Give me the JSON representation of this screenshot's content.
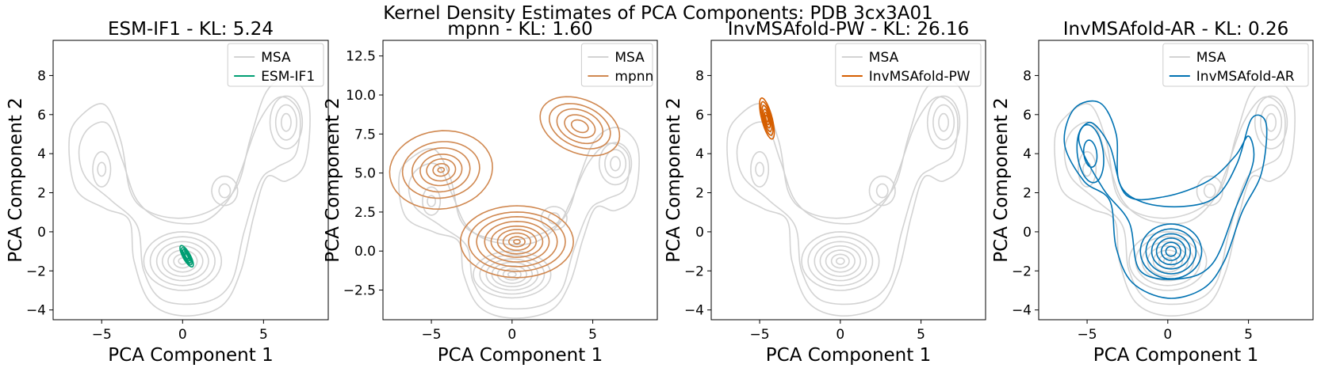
{
  "figure": {
    "suptitle": "Kernel Density Estimates of PCA Components: PDB 3cx3A01"
  },
  "chart_data": [
    {
      "type": "kde_contour",
      "title": "ESM-IF1 - KL: 5.24",
      "xlabel": "PCA Component 1",
      "ylabel": "PCA Component 2",
      "xlim": [
        -8,
        9
      ],
      "ylim": [
        -4.5,
        9.8
      ],
      "xticks": [
        -5,
        0,
        5
      ],
      "yticks": [
        -4,
        -2,
        0,
        2,
        4,
        6,
        8
      ],
      "legend": {
        "position": "top-right",
        "entries": [
          "MSA",
          "ESM-IF1"
        ]
      },
      "series": [
        {
          "name": "MSA",
          "color": "#d3d3d3",
          "role": "reference",
          "peaks": [
            [
              0,
              -1.5
            ],
            [
              -5,
              3.2
            ],
            [
              6.4,
              5.6
            ],
            [
              2.6,
              2.1
            ]
          ]
        },
        {
          "name": "ESM-IF1",
          "color": "#009e73",
          "peaks": [
            [
              0.2,
              -1.2
            ]
          ]
        }
      ]
    },
    {
      "type": "kde_contour",
      "title": "mpnn - KL: 1.60",
      "xlabel": "PCA Component 1",
      "ylabel": "PCA Component 2",
      "xlim": [
        -8,
        9
      ],
      "ylim": [
        -4.4,
        13.5
      ],
      "xticks": [
        -5,
        0,
        5
      ],
      "yticks": [
        -2.5,
        0.0,
        2.5,
        5.0,
        7.5,
        10.0,
        12.5
      ],
      "ytick_labels": [
        "−2.5",
        "0.0",
        "2.5",
        "5.0",
        "7.5",
        "10.0",
        "12.5"
      ],
      "legend": {
        "position": "top-right",
        "entries": [
          "MSA",
          "mpnn"
        ]
      },
      "series": [
        {
          "name": "MSA",
          "color": "#d3d3d3",
          "role": "reference",
          "peaks": [
            [
              0,
              -1.5
            ],
            [
              -5,
              3.2
            ],
            [
              6.4,
              5.6
            ],
            [
              2.6,
              2.1
            ]
          ]
        },
        {
          "name": "mpnn",
          "color": "#d08850",
          "peaks": [
            [
              0.3,
              0.5
            ],
            [
              -4.6,
              5.3
            ],
            [
              4.2,
              8.1
            ]
          ]
        }
      ]
    },
    {
      "type": "kde_contour",
      "title": "InvMSAfold-PW - KL: 26.16",
      "xlabel": "PCA Component 1",
      "ylabel": "PCA Component 2",
      "xlim": [
        -8,
        9
      ],
      "ylim": [
        -4.5,
        9.8
      ],
      "xticks": [
        -5,
        0,
        5
      ],
      "yticks": [
        -4,
        -2,
        0,
        2,
        4,
        6,
        8
      ],
      "legend": {
        "position": "top-right",
        "entries": [
          "MSA",
          "InvMSAfold-PW"
        ]
      },
      "series": [
        {
          "name": "MSA",
          "color": "#d3d3d3",
          "role": "reference",
          "peaks": [
            [
              0,
              -1.5
            ],
            [
              -5,
              3.2
            ],
            [
              6.4,
              5.6
            ],
            [
              2.6,
              2.1
            ]
          ]
        },
        {
          "name": "InvMSAfold-PW",
          "color": "#d55e00",
          "peaks": [
            [
              -4.6,
              5.8
            ]
          ]
        }
      ]
    },
    {
      "type": "kde_contour",
      "title": "InvMSAfold-AR - KL: 0.26",
      "xlabel": "PCA Component 1",
      "ylabel": "PCA Component 2",
      "xlim": [
        -8,
        9
      ],
      "ylim": [
        -4.5,
        9.8
      ],
      "xticks": [
        -5,
        0,
        5
      ],
      "yticks": [
        -4,
        -2,
        0,
        2,
        4,
        6,
        8
      ],
      "legend": {
        "position": "top-right",
        "entries": [
          "MSA",
          "InvMSAfold-AR"
        ]
      },
      "series": [
        {
          "name": "MSA",
          "color": "#d3d3d3",
          "role": "reference",
          "peaks": [
            [
              0,
              -1.5
            ],
            [
              -5,
              3.2
            ],
            [
              6.4,
              5.6
            ],
            [
              2.6,
              2.1
            ]
          ]
        },
        {
          "name": "InvMSAfold-AR",
          "color": "#0072b2",
          "peaks": [
            [
              0.2,
              -1.0
            ],
            [
              -4.8,
              4.0
            ],
            [
              5.0,
              4.6
            ]
          ]
        }
      ]
    }
  ]
}
